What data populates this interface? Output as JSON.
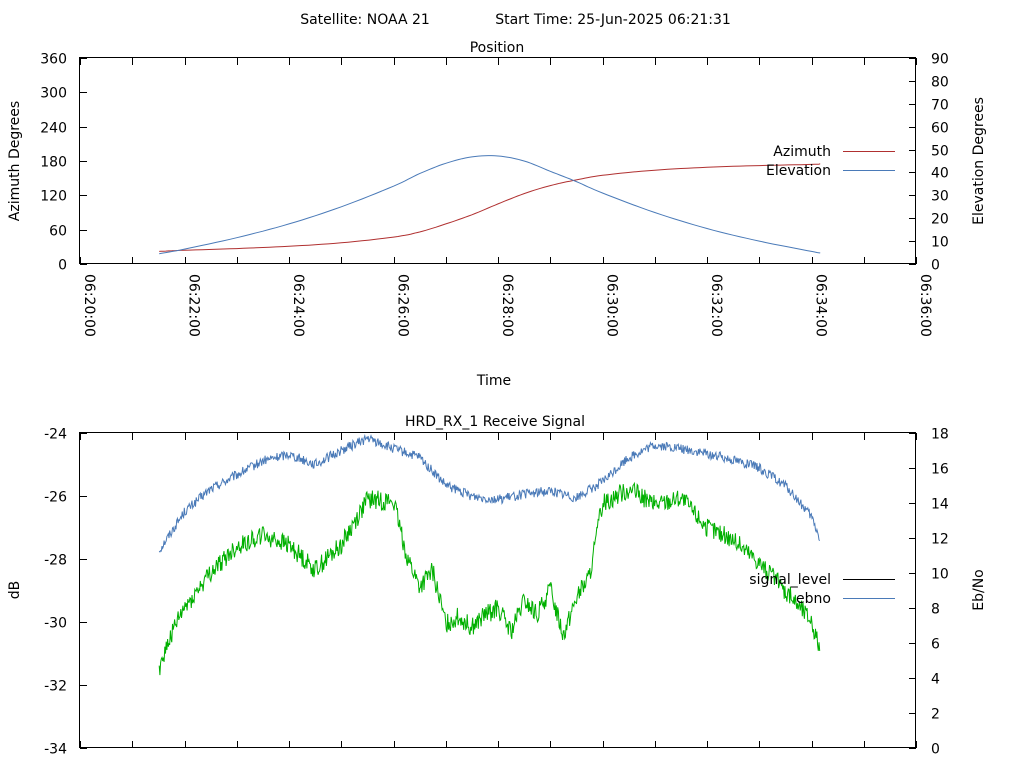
{
  "header": {
    "satellite_label": "Satellite: NOAA 21",
    "start_time_label": "Start Time: 25-Jun-2025 06:21:31"
  },
  "chart_data": [
    {
      "type": "line",
      "title": "Position",
      "xlabel": "Time",
      "ylabel": "Azimuth Degrees",
      "y2label": "Elevation Degrees",
      "x_ticks": [
        "06:20:00",
        "06:22:00",
        "06:24:00",
        "06:26:00",
        "06:28:00",
        "06:30:00",
        "06:32:00",
        "06:34:00",
        "06:36:00"
      ],
      "xlim_seconds_of_hour": [
        1200,
        2160
      ],
      "ylim": [
        0,
        360
      ],
      "y_ticks": [
        "0",
        "60",
        "120",
        "180",
        "240",
        "300",
        "360"
      ],
      "y2lim": [
        0,
        90
      ],
      "y2_ticks": [
        "0",
        "10",
        "20",
        "30",
        "40",
        "50",
        "60",
        "70",
        "80",
        "90"
      ],
      "legend_position": "right",
      "series": [
        {
          "name": "Azimuth",
          "axis": "left",
          "color": "#b03030",
          "x": [
            "06:21:31",
            "06:22:00",
            "06:23:00",
            "06:24:00",
            "06:25:00",
            "06:26:00",
            "06:26:30",
            "06:27:00",
            "06:27:30",
            "06:28:00",
            "06:28:30",
            "06:29:00",
            "06:29:30",
            "06:30:00",
            "06:31:00",
            "06:32:00",
            "06:33:00",
            "06:34:00",
            "06:34:10"
          ],
          "values": [
            22,
            24,
            27,
            31,
            37,
            47,
            56,
            70,
            86,
            105,
            123,
            137,
            147,
            155,
            164,
            169,
            172,
            174,
            175
          ]
        },
        {
          "name": "Elevation",
          "axis": "right",
          "color": "#4a7ab8",
          "x": [
            "06:21:31",
            "06:22:00",
            "06:23:00",
            "06:24:00",
            "06:25:00",
            "06:26:00",
            "06:26:30",
            "06:27:00",
            "06:27:30",
            "06:28:00",
            "06:28:30",
            "06:29:00",
            "06:29:30",
            "06:30:00",
            "06:31:00",
            "06:32:00",
            "06:33:00",
            "06:34:00",
            "06:34:10"
          ],
          "values": [
            4.5,
            6.5,
            11.5,
            17.5,
            25,
            34,
            39.5,
            44,
            46.8,
            47.2,
            45,
            40.5,
            36,
            31,
            22.5,
            15.5,
            10,
            5.5,
            4.8
          ]
        }
      ]
    },
    {
      "type": "line",
      "title": "HRD_RX_1 Receive Signal",
      "ylabel": "dB",
      "y2label": "Eb/No",
      "ylim": [
        -34,
        -24
      ],
      "y_ticks": [
        "-34",
        "-32",
        "-30",
        "-28",
        "-26",
        "-24"
      ],
      "y2lim": [
        0,
        18
      ],
      "y2_ticks": [
        "0",
        "2",
        "4",
        "6",
        "8",
        "10",
        "12",
        "14",
        "16",
        "18"
      ],
      "xlim_seconds_of_hour": [
        1200,
        2160
      ],
      "legend_position": "right",
      "series": [
        {
          "name": "signal_level",
          "axis": "left",
          "color": "#000000",
          "x": [],
          "values": []
        },
        {
          "name": "ebno",
          "axis": "right",
          "color": "#4a7ab8",
          "x": [
            "06:21:31",
            "06:22:00",
            "06:22:30",
            "06:23:00",
            "06:23:30",
            "06:24:00",
            "06:24:30",
            "06:25:00",
            "06:25:30",
            "06:26:00",
            "06:26:30",
            "06:27:00",
            "06:27:30",
            "06:28:00",
            "06:28:30",
            "06:29:00",
            "06:29:30",
            "06:30:00",
            "06:30:30",
            "06:31:00",
            "06:31:30",
            "06:32:00",
            "06:32:30",
            "06:33:00",
            "06:33:30",
            "06:34:00",
            "06:34:10"
          ],
          "values": [
            11.3,
            13.5,
            14.8,
            15.6,
            16.4,
            16.8,
            16.2,
            17.0,
            17.7,
            17.1,
            16.6,
            15.0,
            14.4,
            14.2,
            14.5,
            14.7,
            14.3,
            15.2,
            16.6,
            17.3,
            17.1,
            16.8,
            16.5,
            16.0,
            15.0,
            13.2,
            11.9
          ]
        },
        {
          "name": "",
          "axis": "right",
          "color": "#00b000",
          "x": [
            "06:21:31",
            "06:21:45",
            "06:22:00",
            "06:22:30",
            "06:23:00",
            "06:23:30",
            "06:24:00",
            "06:24:30",
            "06:25:00",
            "06:25:30",
            "06:26:00",
            "06:26:15",
            "06:26:30",
            "06:26:45",
            "06:27:00",
            "06:27:15",
            "06:27:30",
            "06:27:45",
            "06:28:00",
            "06:28:15",
            "06:28:30",
            "06:28:45",
            "06:29:00",
            "06:29:15",
            "06:29:30",
            "06:29:45",
            "06:30:00",
            "06:30:30",
            "06:31:00",
            "06:31:30",
            "06:32:00",
            "06:32:30",
            "06:33:00",
            "06:33:30",
            "06:34:00",
            "06:34:10"
          ],
          "values": [
            4.6,
            6.5,
            8.0,
            10.0,
            11.5,
            12.2,
            11.6,
            10.2,
            11.6,
            14.2,
            14.1,
            11.0,
            9.2,
            10.1,
            7.1,
            7.5,
            6.9,
            7.6,
            8.0,
            6.6,
            8.4,
            7.6,
            9.1,
            6.5,
            8.6,
            9.8,
            14.0,
            14.8,
            13.9,
            14.3,
            12.6,
            11.9,
            10.6,
            9.0,
            7.3,
            5.6
          ]
        }
      ]
    }
  ]
}
